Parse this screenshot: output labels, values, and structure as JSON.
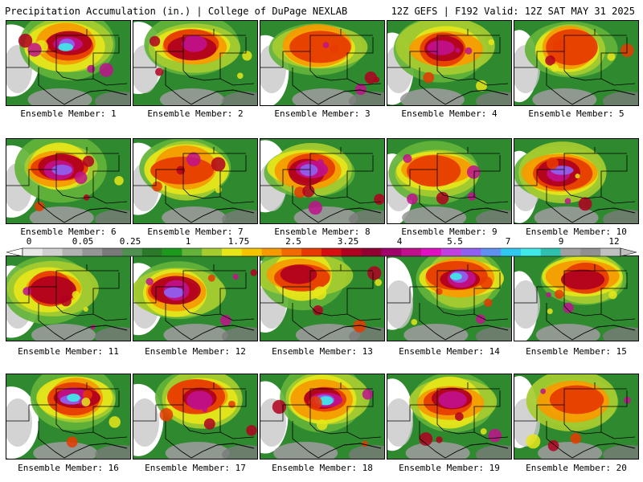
{
  "header": {
    "title": "Precipitation Accumulation (in.) | College of DuPage NEXLAB",
    "run_info": "12Z GEFS | F192 Valid: 12Z SAT MAY 31 2025"
  },
  "colorbar": {
    "labels": [
      "0",
      "0.05",
      "0.25",
      "1",
      "1.75",
      "2.5",
      "3.25",
      "4",
      "5.5",
      "7",
      "9",
      "12"
    ],
    "colors": [
      "#e8e8e8",
      "#cfcfcf",
      "#b2b2b2",
      "#969696",
      "#7a7a7a",
      "#4f8f4f",
      "#2a7a2a",
      "#1d9a1d",
      "#63b33a",
      "#a6cc30",
      "#e6e619",
      "#f5c400",
      "#f59a00",
      "#f06a00",
      "#e63a00",
      "#d41010",
      "#b00020",
      "#900030",
      "#a0006a",
      "#c0108c",
      "#e010c0",
      "#c040e0",
      "#9060f0",
      "#6090f0",
      "#30c8f0",
      "#40e8e8",
      "#30c0b0",
      "#a0a0a0",
      "#909090",
      "#c0c0c0"
    ]
  },
  "panels": [
    {
      "label": "Ensemble Member: 1"
    },
    {
      "label": "Ensemble Member: 2"
    },
    {
      "label": "Ensemble Member: 3"
    },
    {
      "label": "Ensemble Member: 4"
    },
    {
      "label": "Ensemble Member: 5"
    },
    {
      "label": "Ensemble Member: 6"
    },
    {
      "label": "Ensemble Member: 7"
    },
    {
      "label": "Ensemble Member: 8"
    },
    {
      "label": "Ensemble Member: 9"
    },
    {
      "label": "Ensemble Member: 10"
    },
    {
      "label": "Ensemble Member: 11"
    },
    {
      "label": "Ensemble Member: 12"
    },
    {
      "label": "Ensemble Member: 13"
    },
    {
      "label": "Ensemble Member: 14"
    },
    {
      "label": "Ensemble Member: 15"
    },
    {
      "label": "Ensemble Member: 16"
    },
    {
      "label": "Ensemble Member: 17"
    },
    {
      "label": "Ensemble Member: 18"
    },
    {
      "label": "Ensemble Member: 19"
    },
    {
      "label": "Ensemble Member: 20"
    }
  ]
}
